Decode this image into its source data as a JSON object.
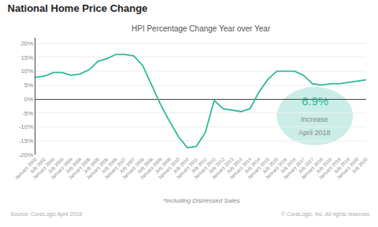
{
  "chart_data": {
    "type": "line",
    "title": "National Home Price Change",
    "subtitle": "HPI Percentage Change Year over Year",
    "footnote": "*Including Distressed Sales",
    "source": [
      "Source: CoreLogic April 2018",
      "© CoreLogic, Inc. All rights reserved."
    ],
    "annotations": [
      "6.9%",
      "Increase",
      "April 2018"
    ],
    "color": "#2db89a",
    "grid": true,
    "categories": [
      "January 2002",
      "July 2002",
      "January 2003",
      "July 2003",
      "January 2004",
      "July 2004",
      "January 2005",
      "July 2005",
      "January 2006",
      "July 2006",
      "January 2007",
      "July 2007",
      "January 2008",
      "July 2008",
      "January 2009",
      "July 2009",
      "January 2010",
      "July 2010",
      "January 2011",
      "July 2011",
      "January 2012",
      "July 2012",
      "January 2013",
      "July 2013",
      "January 2014",
      "July 2014",
      "January 2015",
      "July 2015",
      "January 2016",
      "July 2016",
      "January 2017",
      "July 2017",
      "January 2018",
      "July 2018",
      "January 2019",
      "July 2019",
      "January 2020",
      "July 2020"
    ],
    "values": [
      7.8,
      8.2,
      9.5,
      9.5,
      8.5,
      9.0,
      10.5,
      13.5,
      14.5,
      16.0,
      16.0,
      15.5,
      12.0,
      5.0,
      -2.0,
      -8.0,
      -13.5,
      -17.5,
      -17.0,
      -12.0,
      -0.5,
      -3.5,
      -4.0,
      -4.5,
      -3.5,
      2.5,
      7.0,
      10.0,
      10.0,
      10.0,
      8.5,
      5.5,
      5.0,
      5.5,
      5.5,
      6.0,
      6.5,
      6.9
    ],
    "ylim": [
      -20,
      22
    ],
    "yticks": [
      {
        "value": -20,
        "label": "-20%"
      },
      {
        "value": -15,
        "label": "-15%"
      },
      {
        "value": -10,
        "label": "-10%"
      },
      {
        "value": -5,
        "label": "-5%"
      },
      {
        "value": 0,
        "label": "0%"
      },
      {
        "value": 5,
        "label": "5%"
      },
      {
        "value": 10,
        "label": "10%"
      },
      {
        "value": 15,
        "label": "15%"
      },
      {
        "value": 20,
        "label": "20%"
      }
    ]
  }
}
